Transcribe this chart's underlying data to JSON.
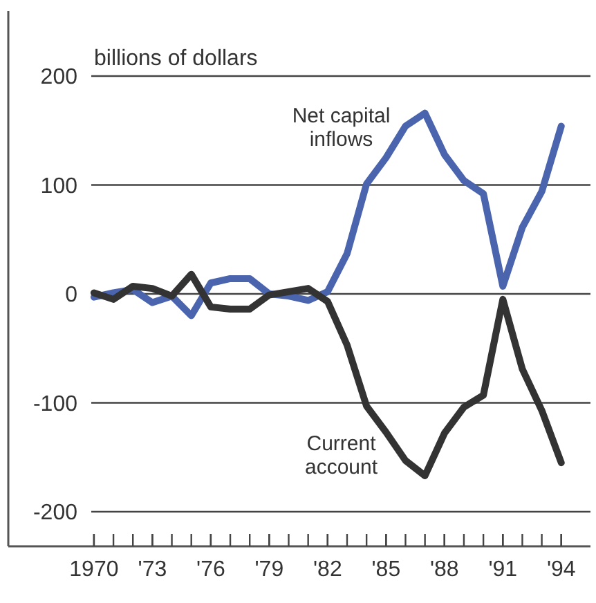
{
  "chart_data": {
    "type": "line",
    "ylabel": "billions of dollars",
    "x": [
      1970,
      1971,
      1972,
      1973,
      1974,
      1975,
      1976,
      1977,
      1978,
      1979,
      1980,
      1981,
      1982,
      1983,
      1984,
      1985,
      1986,
      1987,
      1988,
      1989,
      1990,
      1991,
      1992,
      1993,
      1994
    ],
    "series": [
      {
        "name": "Net capital inflows",
        "color": "#4a64ad",
        "values": [
          -3,
          1,
          4,
          -8,
          -2,
          -20,
          10,
          14,
          14,
          0,
          -2,
          -6,
          2,
          37,
          101,
          125,
          154,
          166,
          128,
          104,
          92,
          7,
          61,
          94,
          154
        ]
      },
      {
        "name": "Current account",
        "color": "#333333",
        "values": [
          1,
          -5,
          7,
          5,
          -2,
          18,
          -12,
          -14,
          -14,
          -1,
          2,
          5,
          -7,
          -47,
          -103,
          -127,
          -153,
          -167,
          -128,
          -104,
          -93,
          -5,
          -69,
          -107,
          -155
        ]
      }
    ],
    "xlim": [
      1965.6,
      1995.5
    ],
    "xticks": [
      {
        "value": 1970,
        "label": "1970"
      },
      {
        "value": 1973,
        "label": "'73"
      },
      {
        "value": 1976,
        "label": "'76"
      },
      {
        "value": 1979,
        "label": "'79"
      },
      {
        "value": 1982,
        "label": "'82"
      },
      {
        "value": 1985,
        "label": "'85"
      },
      {
        "value": 1988,
        "label": "'88"
      },
      {
        "value": 1991,
        "label": "'91"
      },
      {
        "value": 1994,
        "label": "'94"
      }
    ],
    "ylim": [
      -200,
      200
    ],
    "yticks": [
      -200,
      -100,
      0,
      100,
      200
    ],
    "grid": "y",
    "marker": "none",
    "line_style": "solid"
  }
}
